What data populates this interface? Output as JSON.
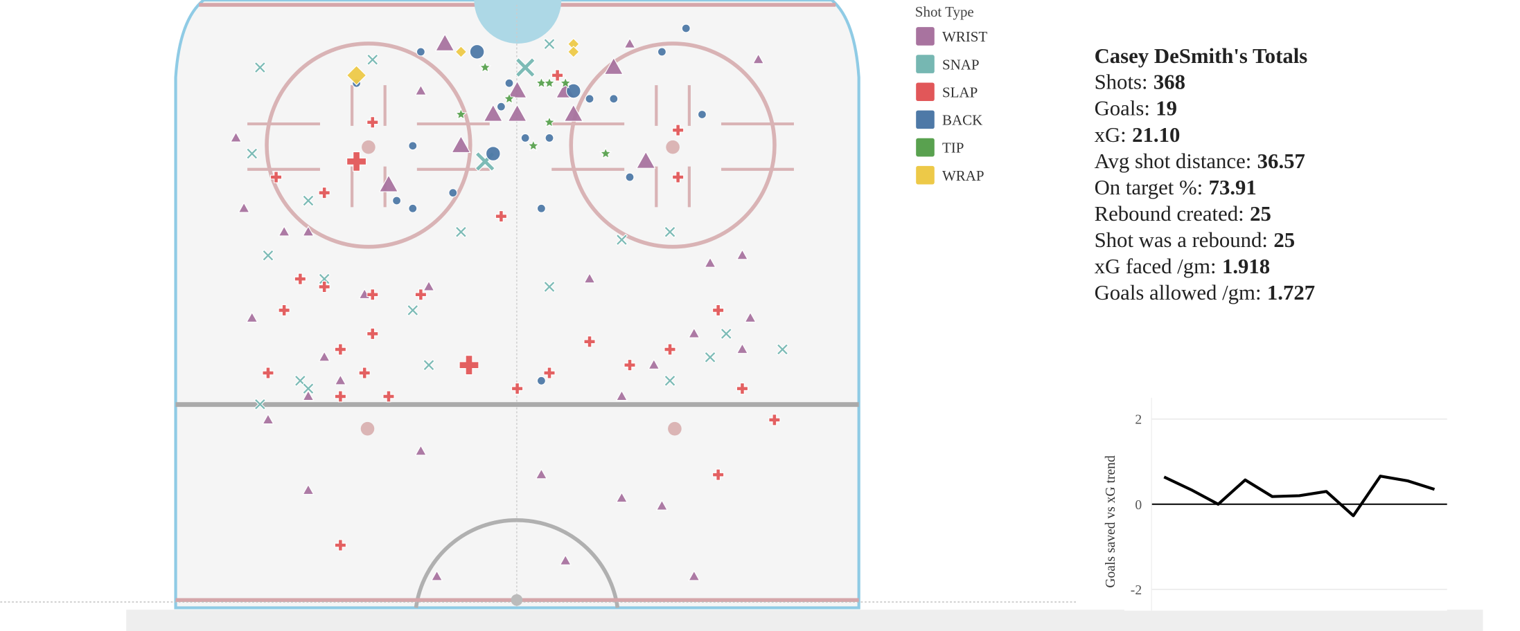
{
  "legend_title": "Shot Type",
  "stats": {
    "title": "Casey DeSmith's Totals",
    "rows": [
      {
        "label": "Shots:",
        "value": "368"
      },
      {
        "label": "Goals:",
        "value": "19"
      },
      {
        "label": "xG:",
        "value": "21.10"
      },
      {
        "label": "Avg shot distance:",
        "value": "36.57"
      },
      {
        "label": "On target %:",
        "value": "73.91"
      },
      {
        "label": "Rebound created:",
        "value": "25"
      },
      {
        "label": "Shot was a rebound:",
        "value": "25"
      },
      {
        "label": "xG faced /gm:",
        "value": "1.918"
      },
      {
        "label": "Goals allowed /gm:",
        "value": "1.727"
      }
    ]
  },
  "chart_data": [
    {
      "type": "scatter",
      "xlim": [
        -42.5,
        42.5
      ],
      "ylim": [
        0,
        76
      ],
      "series": [
        {
          "name": "WRIST",
          "color": "#a8739f",
          "marker": "triangle",
          "x": [
            -35,
            -34,
            -29,
            -26,
            -33,
            -31,
            -26,
            -24,
            -22,
            -19,
            -12,
            -10,
            3,
            6,
            13,
            18,
            22,
            24,
            28,
            30,
            29,
            22,
            17,
            13,
            9,
            -12,
            14,
            -11,
            -26,
            28,
            -9,
            -3,
            0,
            7,
            6,
            12,
            16,
            -7,
            -16,
            0
          ],
          "y": [
            59,
            50,
            47,
            47,
            36,
            23,
            14,
            31,
            28,
            39,
            19,
            3,
            16,
            5,
            13,
            12,
            3,
            43,
            44,
            69,
            36,
            34,
            30,
            26,
            41,
            65,
            71,
            40,
            26,
            32,
            71,
            62,
            62,
            62,
            65,
            68,
            56,
            58,
            53,
            65
          ],
          "size": [
            1,
            1,
            1,
            1,
            1,
            1,
            1,
            1,
            1,
            1,
            1,
            1,
            1,
            1,
            1,
            1,
            1,
            1,
            1,
            1,
            1,
            1,
            1,
            1,
            1,
            1,
            1,
            1,
            1,
            1,
            3,
            3,
            3,
            3,
            3,
            3,
            3,
            3,
            3,
            3
          ]
        },
        {
          "name": "SNAP",
          "color": "#76b7b2",
          "marker": "x",
          "x": [
            -32,
            -33,
            -31,
            -26,
            -24,
            -27,
            -26,
            -32,
            -13,
            -7,
            4,
            13,
            19,
            24,
            26,
            33,
            19,
            -11,
            4,
            -18,
            1,
            -4
          ],
          "y": [
            68,
            57,
            44,
            51,
            41,
            28,
            27,
            25,
            37,
            47,
            40,
            46,
            47,
            31,
            34,
            32,
            28,
            30,
            71,
            69,
            68,
            56
          ],
          "size": [
            1,
            1,
            1,
            1,
            1,
            1,
            1,
            1,
            1,
            1,
            1,
            1,
            1,
            1,
            1,
            1,
            1,
            1,
            1,
            1,
            3,
            3
          ]
        },
        {
          "name": "SLAP",
          "color": "#e15759",
          "marker": "plus",
          "x": [
            -30,
            -24,
            -27,
            -24,
            -29,
            -18,
            -12,
            -22,
            -18,
            -19,
            -22,
            -16,
            -31,
            -2,
            0,
            4,
            9,
            14,
            19,
            25,
            28,
            32,
            25,
            -22,
            20,
            20,
            -18,
            5,
            -20,
            -6
          ],
          "y": [
            54,
            52,
            41,
            40,
            37,
            39,
            39,
            32,
            34,
            29,
            26,
            26,
            29,
            49,
            27,
            29,
            33,
            30,
            32,
            37,
            27,
            23,
            16,
            7,
            54,
            60,
            61,
            67,
            56,
            30
          ],
          "size": [
            1,
            1,
            1,
            1,
            1,
            1,
            1,
            1,
            1,
            1,
            1,
            1,
            1,
            1,
            1,
            1,
            1,
            1,
            1,
            1,
            1,
            1,
            1,
            1,
            1,
            1,
            1,
            1,
            3,
            3
          ]
        },
        {
          "name": "BACK",
          "color": "#4e79a7",
          "marker": "circle",
          "x": [
            -20,
            -12,
            -1,
            1,
            3,
            9,
            12,
            14,
            18,
            21,
            23,
            -13,
            -15,
            -13,
            -8,
            -2,
            4,
            3,
            -5,
            7,
            -3
          ],
          "y": [
            66,
            70,
            66,
            59,
            50,
            64,
            64,
            54,
            70,
            73,
            62,
            58,
            51,
            50,
            52,
            63,
            59,
            28,
            70,
            65,
            57
          ],
          "size": [
            1,
            1,
            1,
            1,
            1,
            1,
            1,
            1,
            1,
            1,
            1,
            1,
            1,
            1,
            1,
            1,
            1,
            1,
            3,
            3,
            3
          ]
        },
        {
          "name": "TIP",
          "color": "#59a14f",
          "marker": "star",
          "x": [
            -7,
            -4,
            3,
            4,
            4,
            2,
            11,
            -1,
            6
          ],
          "y": [
            62,
            68,
            66,
            66,
            61,
            58,
            57,
            64,
            66
          ],
          "size": [
            1,
            1,
            1,
            1,
            1,
            1,
            1,
            1,
            1
          ]
        },
        {
          "name": "WRAP",
          "color": "#edc948",
          "marker": "diamond",
          "x": [
            7,
            7,
            -7,
            -20
          ],
          "y": [
            71,
            70,
            70,
            67
          ],
          "size": [
            1,
            1,
            1,
            3
          ]
        }
      ]
    },
    {
      "type": "line",
      "y_label": "Goals saved vs xG trend",
      "values": [
        0.64,
        0.34,
        0,
        0.57,
        0.18,
        0.2,
        0.3,
        -0.27,
        0.66,
        0.55,
        0.35
      ],
      "color": "#000000",
      "ylim": [
        -2.5,
        2.5
      ],
      "yticks": [
        -2,
        0,
        2
      ],
      "grid": true
    }
  ]
}
